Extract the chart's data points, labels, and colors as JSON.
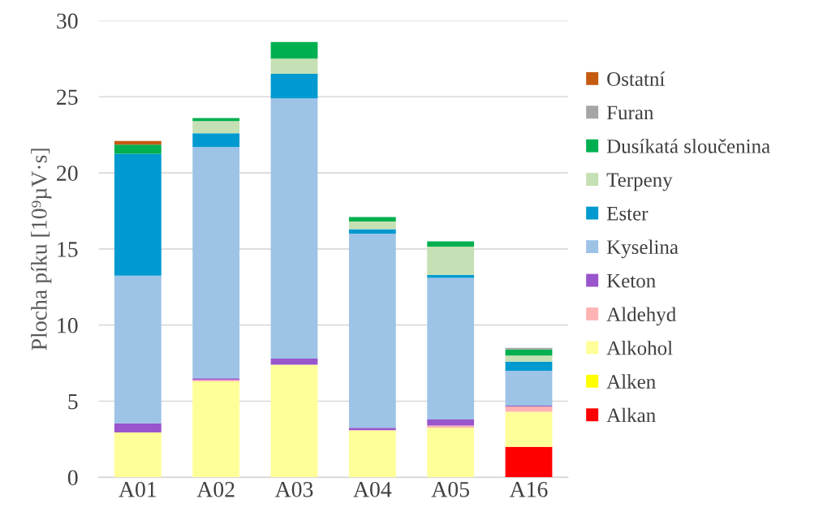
{
  "chart_data": {
    "type": "bar",
    "stacked": true,
    "ylabel": "Plocha píku [10⁹µV·s]",
    "categories": [
      "A01",
      "A02",
      "A03",
      "A04",
      "A05",
      "A16"
    ],
    "ylim": [
      0,
      30
    ],
    "yticks": [
      0,
      5,
      10,
      15,
      20,
      25,
      30
    ],
    "grid": "y",
    "legend": "right",
    "series": [
      {
        "name": "Alkan",
        "color": "#ff0000",
        "values": [
          0,
          0,
          0,
          0,
          0,
          2.0
        ]
      },
      {
        "name": "Alken",
        "color": "#ffff00",
        "values": [
          0,
          0,
          0,
          0,
          0,
          0
        ]
      },
      {
        "name": "Alkohol",
        "color": "#ffff99",
        "values": [
          2.95,
          6.3,
          7.4,
          3.1,
          3.25,
          2.3
        ]
      },
      {
        "name": "Aldehyd",
        "color": "#ffb3b3",
        "values": [
          null,
          0.1,
          0,
          0,
          0.15,
          0.35
        ]
      },
      {
        "name": "Keton",
        "color": "#9955cc",
        "values": [
          0.6,
          0.1,
          0.4,
          0.15,
          0.4,
          0.05
        ]
      },
      {
        "name": "Kyselina",
        "color": "#9dc3e6",
        "values": [
          9.7,
          15.2,
          17.1,
          12.75,
          9.3,
          2.3
        ]
      },
      {
        "name": "Ester",
        "color": "#0099d0",
        "values": [
          8.0,
          0.9,
          1.6,
          0.3,
          0.2,
          0.6
        ]
      },
      {
        "name": "Terpeny",
        "color": "#c5e0b4",
        "values": [
          0,
          0.8,
          1.0,
          0.5,
          1.85,
          0.4
        ]
      },
      {
        "name": "Dusíkatá sloučenina",
        "color": "#00b050",
        "values": [
          0.6,
          0.2,
          1.1,
          0.3,
          0.35,
          0.4
        ]
      },
      {
        "name": "Furan",
        "color": "#a5a5a5",
        "values": [
          0,
          0,
          0,
          0,
          0,
          0.1
        ]
      },
      {
        "name": "Ostatní",
        "color": "#c55a11",
        "values": [
          0.25,
          0,
          0,
          0,
          0,
          0
        ]
      }
    ]
  }
}
